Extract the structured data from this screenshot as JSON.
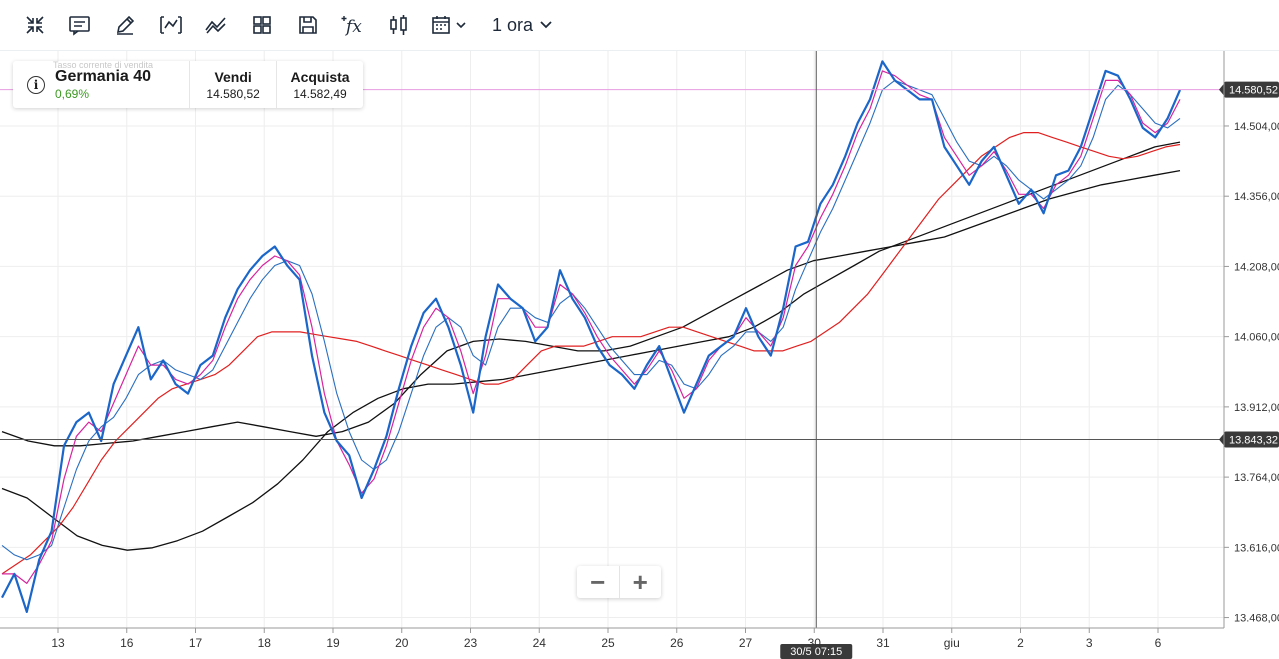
{
  "toolbar": {
    "icons": [
      "collapse-icon",
      "notes-icon",
      "draw-icon",
      "chart-type-icon",
      "indicators-trend-icon",
      "layout-grid-icon",
      "save-icon",
      "function-icon",
      "candlestick-icon",
      "calendar-icon"
    ],
    "timeframe": "1 ora"
  },
  "instrument": {
    "ghost_label": "Tasso corrente di vendita",
    "name": "Germania 40",
    "change": "0,69%",
    "sell_label": "Vendi",
    "sell_value": "14.580,52",
    "buy_label": "Acquista",
    "buy_value": "14.582,49"
  },
  "colors": {
    "price": "#1a66c9",
    "fast_ma": "#d6249f",
    "mid_ma": "#2a6fc0",
    "slow_ma": "#e02020",
    "long_ma": "#111111",
    "current_line": "#e79be0",
    "crosshair": "#555555"
  },
  "chart_data": {
    "type": "line",
    "ylim": [
      13450,
      14660
    ],
    "y_ticks": [
      "14.504,00",
      "14.356,00",
      "14.208,00",
      "14.060,00",
      "13.912,00",
      "13.764,00",
      "13.616,00",
      "13.468,00"
    ],
    "x_ticks": [
      "13",
      "16",
      "17",
      "18",
      "19",
      "20",
      "23",
      "24",
      "25",
      "26",
      "27",
      "30",
      "31",
      "giu",
      "2",
      "3",
      "6"
    ],
    "current_price_label": "14.580,52",
    "current_price": 14580.52,
    "crosshair_price_label": "13.843,32",
    "crosshair_price": 13843.32,
    "crosshair_time_label": "30/5 07:15",
    "series": [
      {
        "values": [
          13510,
          13560,
          13480,
          13590,
          13650,
          13830,
          13880,
          13900,
          13840,
          13960,
          14020,
          14080,
          13970,
          14010,
          13960,
          13940,
          14000,
          14020,
          14100,
          14160,
          14200,
          14230,
          14250,
          14210,
          14180,
          14020,
          13900,
          13840,
          13810,
          13720,
          13780,
          13850,
          13950,
          14040,
          14110,
          14140,
          14080,
          14000,
          13900,
          14060,
          14170,
          14140,
          14120,
          14050,
          14080,
          14200,
          14140,
          14100,
          14040,
          14000,
          13980,
          13950,
          14000,
          14040,
          13970,
          13900,
          13960,
          14020,
          14040,
          14060,
          14120,
          14060,
          14020,
          14120,
          14250,
          14260,
          14340,
          14380,
          14440,
          14510,
          14560,
          14640,
          14600,
          14580,
          14560,
          14560,
          14460,
          14420,
          14380,
          14430,
          14460,
          14400,
          14340,
          14370,
          14320,
          14400,
          14410,
          14460,
          14540,
          14620,
          14610,
          14560,
          14500,
          14480,
          14520,
          14580
        ]
      },
      {
        "values": [
          13560,
          13560,
          13540,
          13580,
          13630,
          13760,
          13850,
          13880,
          13860,
          13920,
          13980,
          14040,
          14000,
          14000,
          13970,
          13960,
          13980,
          14010,
          14080,
          14140,
          14180,
          14210,
          14230,
          14220,
          14190,
          14080,
          13940,
          13840,
          13790,
          13730,
          13760,
          13830,
          13920,
          14010,
          14080,
          14120,
          14100,
          14030,
          13940,
          14020,
          14140,
          14140,
          14120,
          14080,
          14080,
          14170,
          14150,
          14110,
          14060,
          14020,
          13990,
          13960,
          13990,
          14030,
          13990,
          13930,
          13950,
          14010,
          14040,
          14060,
          14100,
          14070,
          14040,
          14100,
          14210,
          14250,
          14310,
          14360,
          14420,
          14490,
          14540,
          14620,
          14610,
          14590,
          14570,
          14560,
          14480,
          14440,
          14400,
          14420,
          14450,
          14410,
          14360,
          14360,
          14330,
          14380,
          14400,
          14440,
          14520,
          14600,
          14600,
          14570,
          14510,
          14490,
          14510,
          14560
        ]
      },
      {
        "values": [
          13620,
          13600,
          13590,
          13600,
          13620,
          13700,
          13780,
          13840,
          13870,
          13890,
          13930,
          13980,
          14000,
          14010,
          13990,
          13980,
          13970,
          13990,
          14040,
          14090,
          14140,
          14180,
          14210,
          14220,
          14210,
          14150,
          14050,
          13940,
          13860,
          13800,
          13780,
          13800,
          13860,
          13940,
          14020,
          14080,
          14100,
          14080,
          14020,
          14000,
          14080,
          14120,
          14120,
          14100,
          14090,
          14130,
          14150,
          14120,
          14080,
          14040,
          14010,
          13980,
          13980,
          14010,
          14000,
          13960,
          13950,
          13980,
          14020,
          14040,
          14070,
          14070,
          14050,
          14080,
          14160,
          14220,
          14280,
          14330,
          14390,
          14450,
          14510,
          14580,
          14600,
          14590,
          14580,
          14570,
          14520,
          14470,
          14430,
          14420,
          14440,
          14420,
          14390,
          14370,
          14350,
          14370,
          14390,
          14420,
          14480,
          14560,
          14590,
          14570,
          14540,
          14510,
          14500,
          14520
        ]
      },
      {
        "values": [
          13560,
          13580,
          13600,
          13630,
          13660,
          13700,
          13750,
          13800,
          13840,
          13870,
          13900,
          13930,
          13950,
          13960,
          13970,
          13980,
          14000,
          14030,
          14060,
          14070,
          14070,
          14070,
          14065,
          14060,
          14055,
          14050,
          14040,
          14030,
          14020,
          14010,
          14000,
          13990,
          13980,
          13970,
          13960,
          13960,
          13970,
          14000,
          14030,
          14040,
          14040,
          14040,
          14050,
          14060,
          14060,
          14060,
          14070,
          14080,
          14080,
          14070,
          14060,
          14050,
          14040,
          14030,
          14030,
          14030,
          14040,
          14050,
          14070,
          14090,
          14120,
          14150,
          14190,
          14230,
          14270,
          14310,
          14350,
          14380,
          14410,
          14440,
          14460,
          14480,
          14490,
          14490,
          14480,
          14470,
          14460,
          14450,
          14440,
          14435,
          14440,
          14450,
          14460,
          14465
        ]
      },
      {
        "values": [
          13740,
          13720,
          13680,
          13640,
          13620,
          13610,
          13615,
          13630,
          13650,
          13680,
          13710,
          13750,
          13800,
          13860,
          13900,
          13930,
          13950,
          13960,
          13960,
          13965,
          13970,
          13980,
          13990,
          14000,
          14010,
          14020,
          14030,
          14040,
          14050,
          14060,
          14080,
          14110,
          14150,
          14180,
          14210,
          14240,
          14260,
          14280,
          14300,
          14320,
          14340,
          14360,
          14380,
          14400,
          14420,
          14440,
          14460,
          14470
        ]
      },
      {
        "values": [
          13860,
          13840,
          13830,
          13830,
          13835,
          13840,
          13850,
          13860,
          13870,
          13880,
          13870,
          13860,
          13850,
          13860,
          13880,
          13920,
          13980,
          14030,
          14050,
          14055,
          14050,
          14040,
          14030,
          14030,
          14040,
          14060,
          14080,
          14110,
          14140,
          14170,
          14200,
          14220,
          14230,
          14240,
          14250,
          14260,
          14270,
          14290,
          14310,
          14330,
          14350,
          14365,
          14380,
          14390,
          14400,
          14410
        ]
      }
    ]
  }
}
